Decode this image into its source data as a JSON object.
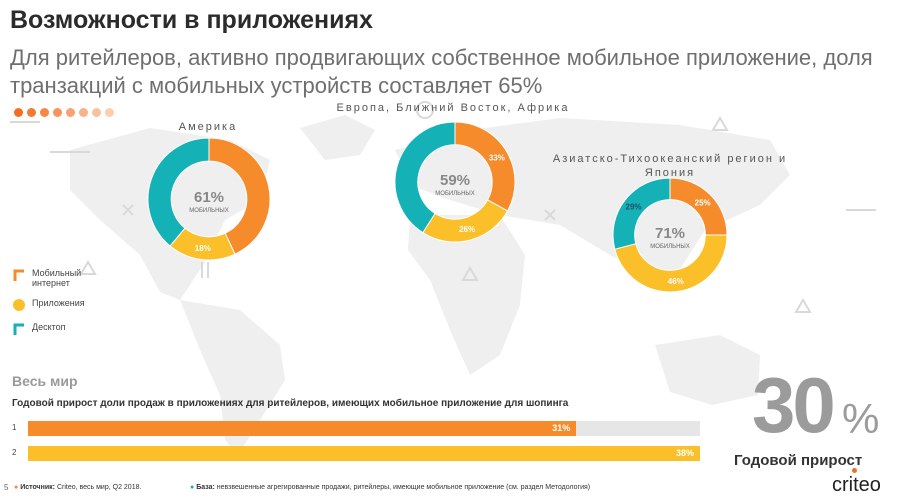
{
  "header": {
    "title": "Возможности в приложениях",
    "subtitle": "Для ритейлеров, активно продвигающих собственное мобильное приложение, доля транзакций с мобильных устройств составляет 65%"
  },
  "colors": {
    "mobile_web": "#f58b2b",
    "apps": "#fbbf2a",
    "desktop": "#14b1b7",
    "track": "#eeeeee"
  },
  "legend": {
    "mobile_web": "Мобильный интернет",
    "apps": "Приложения",
    "desktop": "Десктоп"
  },
  "chart_data": [
    {
      "type": "pie",
      "region": "Америка",
      "center_value": "61%",
      "center_label": "МОБИЛЬНЫХ",
      "slices": [
        {
          "name": "Мобильный интернет",
          "value": 43,
          "label": ""
        },
        {
          "name": "Приложения",
          "value": 18,
          "label": "18%"
        },
        {
          "name": "Десктоп",
          "value": 39,
          "label": ""
        }
      ]
    },
    {
      "type": "pie",
      "region": "Европа, Ближний Восток, Африка",
      "center_value": "59%",
      "center_label": "МОБИЛЬНЫХ",
      "slices": [
        {
          "name": "Мобильный интернет",
          "value": 33,
          "label": "33%"
        },
        {
          "name": "Приложения",
          "value": 26,
          "label": "26%"
        },
        {
          "name": "Десктоп",
          "value": 41,
          "label": ""
        }
      ]
    },
    {
      "type": "pie",
      "region": "Азиатско-Тихоокеанский регион и Япония",
      "center_value": "71%",
      "center_label": "МОБИЛЬНЫХ",
      "slices": [
        {
          "name": "Мобильный интернет",
          "value": 25,
          "label": "25%"
        },
        {
          "name": "Приложения",
          "value": 46,
          "label": "46%"
        },
        {
          "name": "Десктоп",
          "value": 29,
          "label": "29%"
        }
      ]
    },
    {
      "type": "bar",
      "section": "Весь мир",
      "title": "Годовой прирост доли продаж в приложениях для ритейлеров, имеющих мобильное приложение для шопинга",
      "categories": [
        "1",
        "2"
      ],
      "values": [
        31,
        38
      ],
      "labels": [
        "31%",
        "38%"
      ],
      "xlim": [
        0,
        38
      ]
    }
  ],
  "highlight": {
    "number": "30",
    "percent": "%",
    "label": "Годовой прирост"
  },
  "footer": {
    "page": "5",
    "source_label": "Источник:",
    "source_text": "Criteo, весь мир, Q2 2018.",
    "base_label": "База:",
    "base_text": "невзвешенные агрегированные продажи, ритейлеры, имеющие мобильное приложение (см. раздел Методология)",
    "logo": "criteo"
  }
}
